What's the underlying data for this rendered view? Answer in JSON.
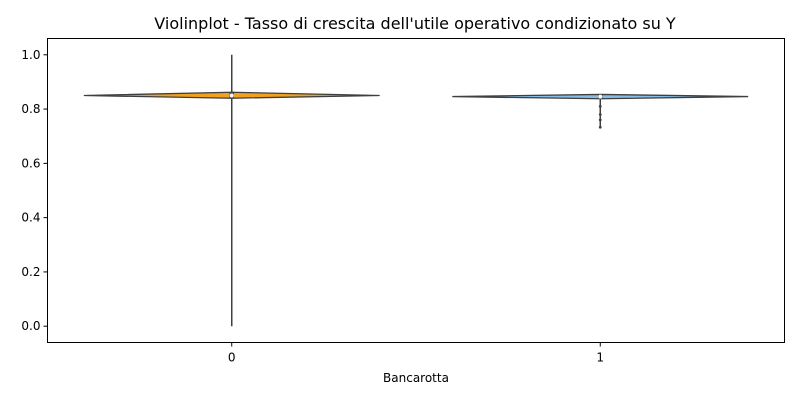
{
  "chart_data": {
    "type": "violin",
    "title": "Violinplot - Tasso di crescita dell'utile operativo condizionato su Y",
    "xlabel": "Bancarotta",
    "ylabel": "",
    "categories": [
      "0",
      "1"
    ],
    "ylim": [
      -0.06,
      1.06
    ],
    "yticks": [
      0.0,
      0.2,
      0.4,
      0.6,
      0.8,
      1.0
    ],
    "ytick_labels": [
      "0.0",
      "0.2",
      "0.4",
      "0.6",
      "0.8",
      "1.0"
    ],
    "grid": false,
    "legend": "none",
    "violins": [
      {
        "category": "0",
        "color": "#f0a21e",
        "min": 0.0,
        "max": 1.0,
        "q1": 0.841,
        "q3": 0.862,
        "median": 0.85,
        "mode": 0.85,
        "peak_width": 0.8,
        "kde_top": 0.862,
        "kde_bottom": 0.84
      },
      {
        "category": "1",
        "color": "#88bde6",
        "min": 0.733,
        "max": 0.855,
        "q1": 0.838,
        "q3": 0.853,
        "median": 0.846,
        "mode": 0.846,
        "peak_width": 0.8,
        "kde_top": 0.854,
        "kde_bottom": 0.838,
        "tail_points": [
          0.81,
          0.78,
          0.76,
          0.733
        ]
      }
    ]
  }
}
